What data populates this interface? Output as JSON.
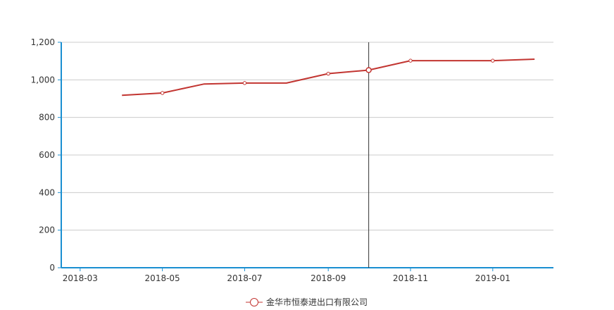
{
  "colors": {
    "series": "#c23531",
    "axis": "#1a8fd1",
    "grid": "#cccccc",
    "crosshair": "#333333",
    "text": "#333333"
  },
  "chart_data": {
    "type": "line",
    "title": "",
    "xlabel": "",
    "ylabel": "",
    "ylim": [
      0,
      1200
    ],
    "yticks": [
      0,
      200,
      400,
      600,
      800,
      1000,
      1200
    ],
    "ytick_labels": [
      "0",
      "200",
      "400",
      "600",
      "800",
      "1,000",
      "1,200"
    ],
    "xlim": [
      "2018-02-15",
      "2019-02-15"
    ],
    "xticks": [
      "2018-03-01",
      "2018-05-01",
      "2018-07-01",
      "2018-09-01",
      "2018-11-01",
      "2019-01-01"
    ],
    "xtick_labels": [
      "2018-03",
      "2018-05",
      "2018-07",
      "2018-09",
      "2018-11",
      "2019-01"
    ],
    "grid": true,
    "legend_position": "bottom-center",
    "crosshair_x": "2018-10-01",
    "series": [
      {
        "name": "金华市恒泰进出口有限公司",
        "x": [
          "2018-04-01",
          "2018-05-01",
          "2018-06-01",
          "2018-07-01",
          "2018-08-01",
          "2018-09-01",
          "2018-10-01",
          "2018-11-01",
          "2018-12-01",
          "2019-01-01",
          "2019-02-01"
        ],
        "values": [
          918,
          930,
          978,
          983,
          983,
          1033,
          1052,
          1102,
          1102,
          1102,
          1110
        ]
      }
    ]
  }
}
